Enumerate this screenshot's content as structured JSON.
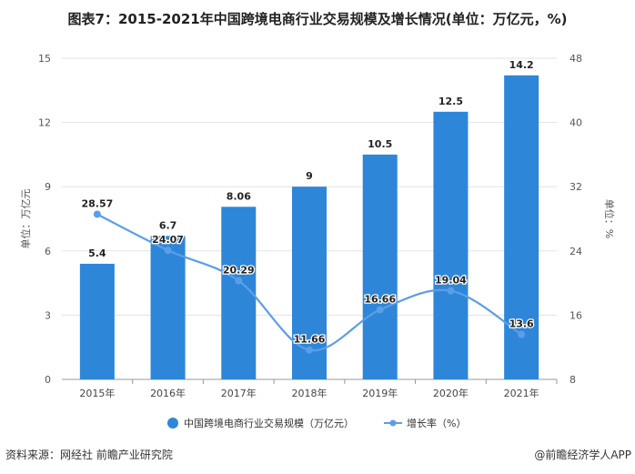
{
  "chart_data": {
    "type": "bar+line",
    "title": "图表7：2015-2021年中国跨境电商行业交易规模及增长情况(单位：万亿元，%)",
    "categories": [
      "2015年",
      "2016年",
      "2017年",
      "2018年",
      "2019年",
      "2020年",
      "2021年"
    ],
    "series": [
      {
        "name": "中国跨境电商行业交易规模（万亿元）",
        "type": "bar",
        "axis": "left",
        "values": [
          5.4,
          6.7,
          8.06,
          9,
          10.5,
          12.5,
          14.2
        ],
        "labels": [
          "5.4",
          "6.7",
          "8.06",
          "9",
          "10.5",
          "12.5",
          "14.2"
        ],
        "color": "#2e86d9"
      },
      {
        "name": "增长率（%）",
        "type": "line",
        "axis": "right",
        "smooth": true,
        "values": [
          28.57,
          24.07,
          20.29,
          11.66,
          16.66,
          19.04,
          13.6
        ],
        "labels": [
          "28.57",
          "24.07",
          "20.29",
          "11.66",
          "16.66",
          "19.04",
          "13.6"
        ],
        "color": "#5b9ee8"
      }
    ],
    "ylabel_left": "单位：万亿元",
    "ylabel_right": "单位：%",
    "ylim_left": [
      0,
      15
    ],
    "yticks_left": [
      "0",
      "3",
      "6",
      "9",
      "12",
      "15"
    ],
    "ylim_right": [
      8,
      48
    ],
    "yticks_right": [
      "8",
      "16",
      "24",
      "32",
      "40",
      "48"
    ],
    "grid": true,
    "legend_placement": "bottom"
  },
  "footer": {
    "source": "资料来源：网经社 前瞻产业研究院",
    "credit": "@前瞻经济学人APP"
  }
}
